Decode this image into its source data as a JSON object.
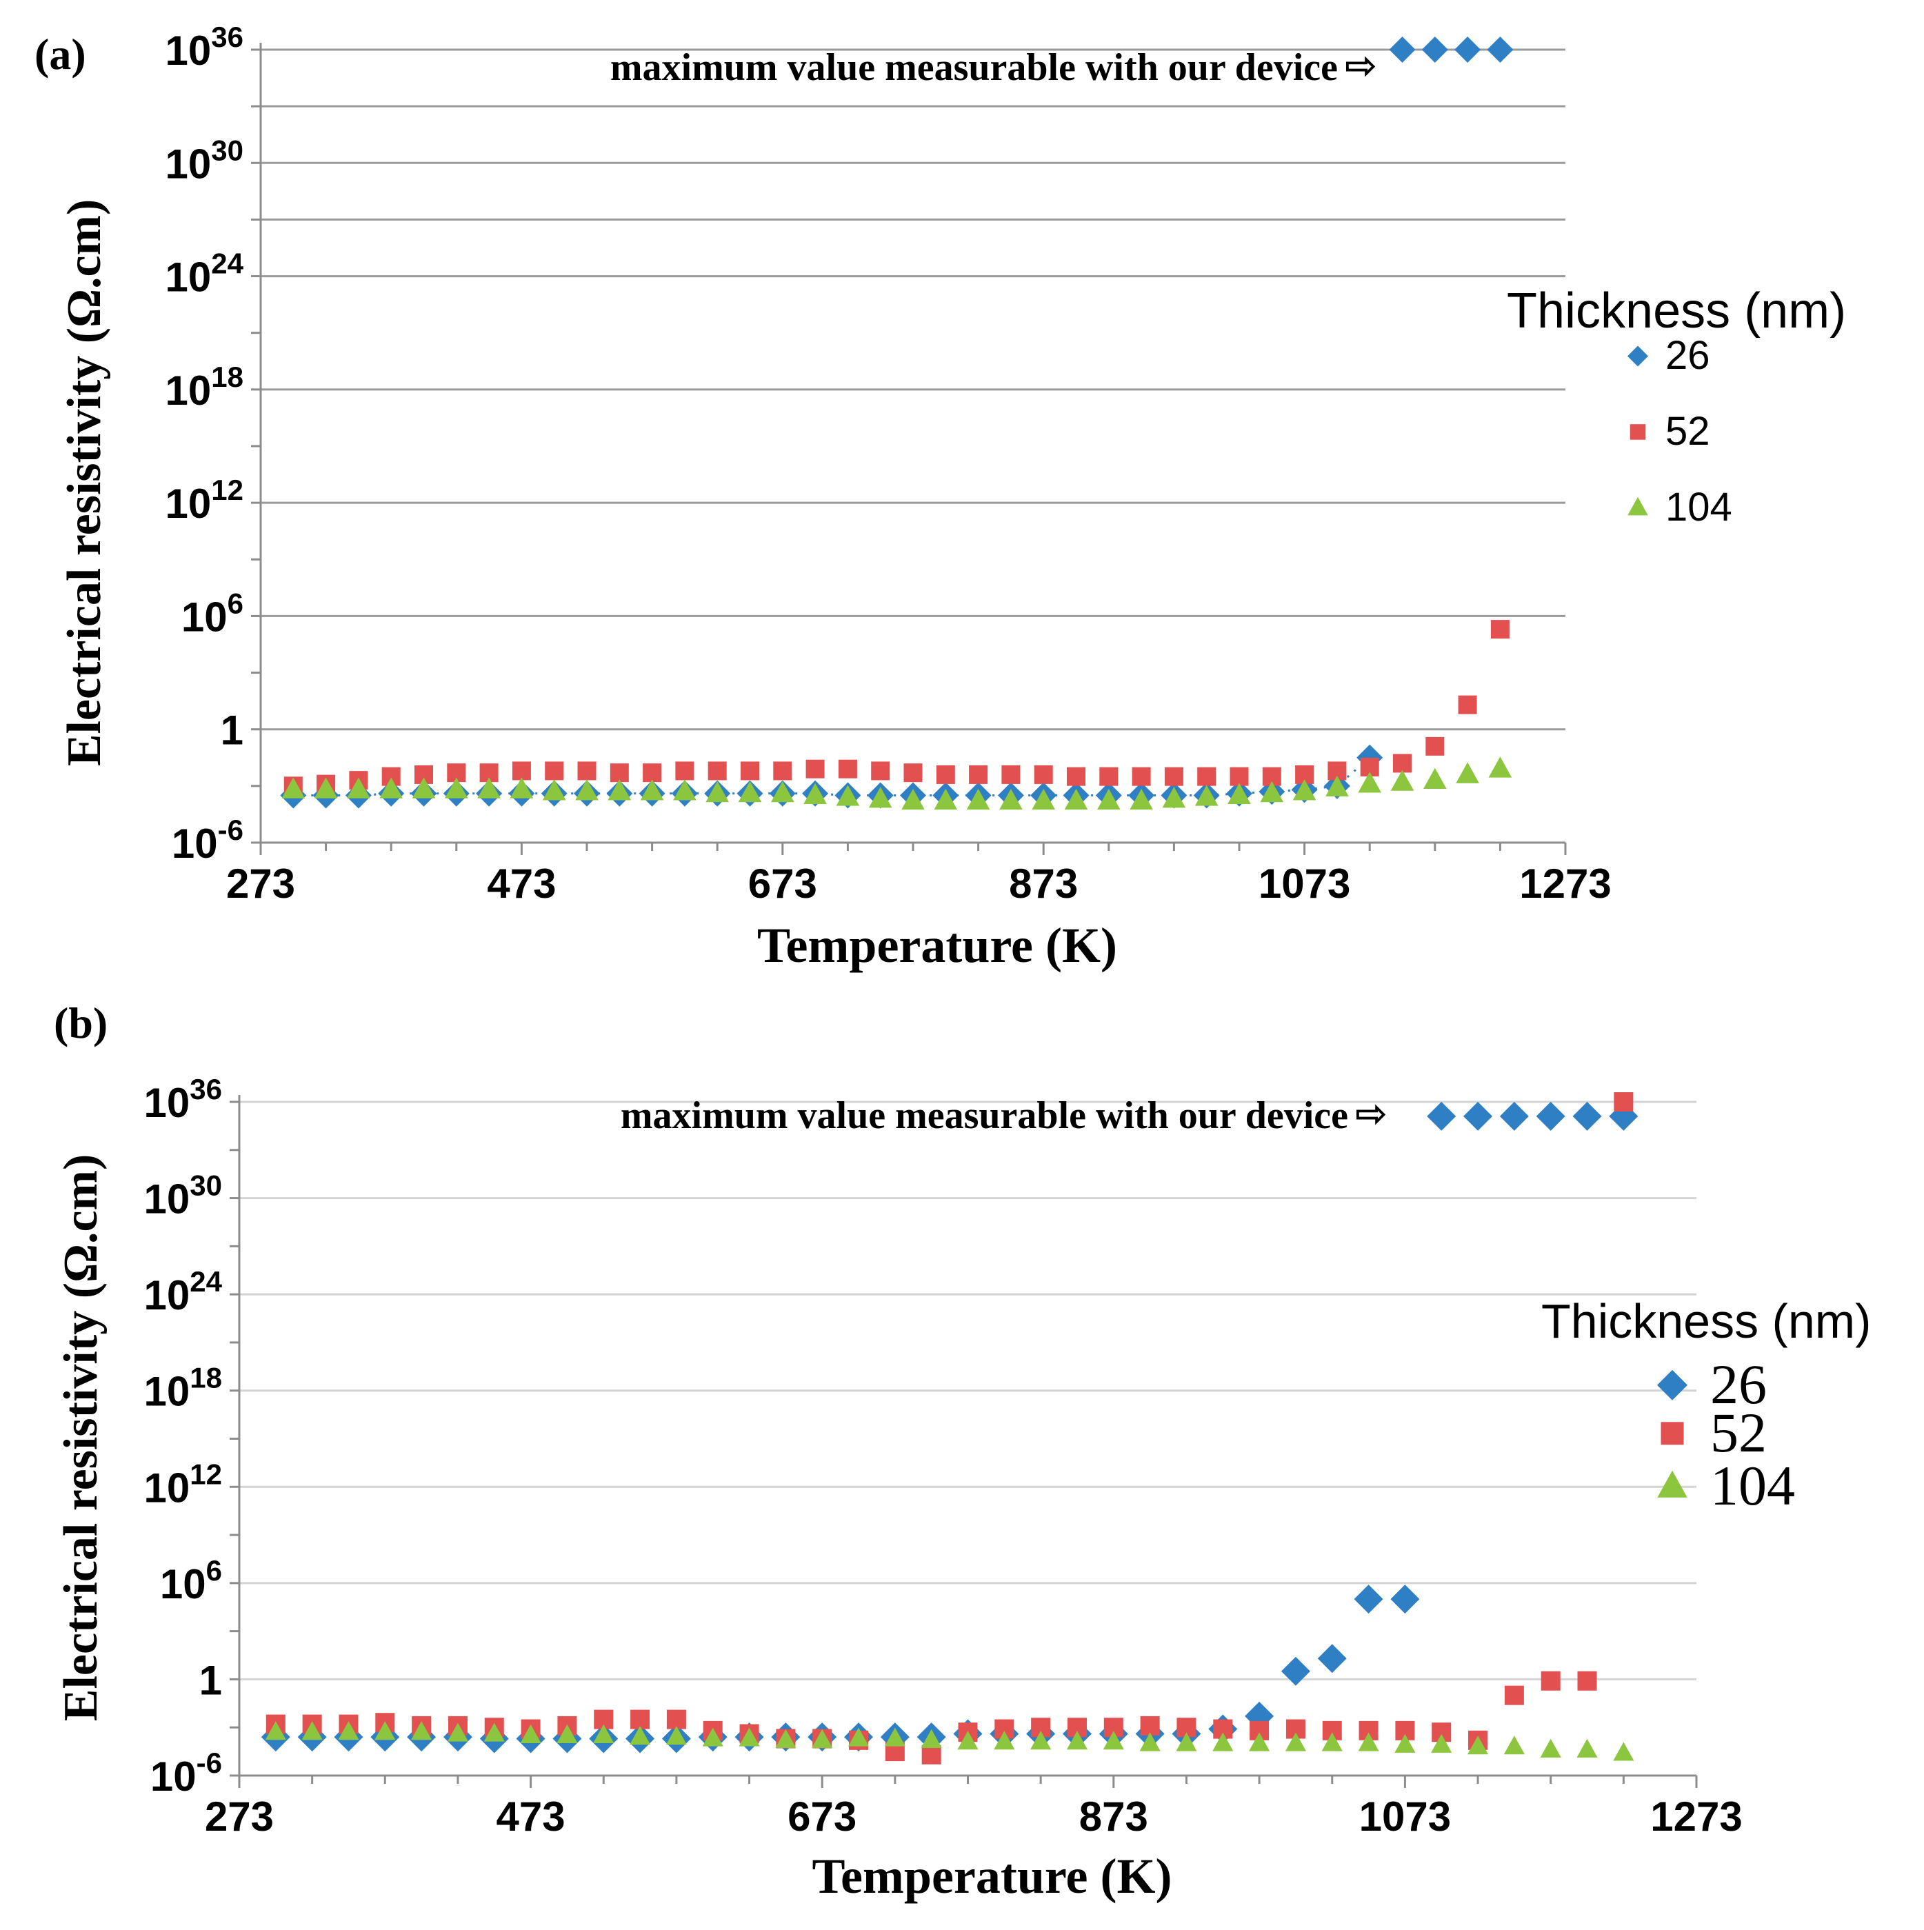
{
  "chart_data": [
    {
      "type": "scatter",
      "panel_label": "(a)",
      "xlabel": "Temperature (K)",
      "ylabel": "Electrical resistivity  (Ω.cm)",
      "xlim": [
        273,
        1273
      ],
      "x_ticks": [
        "273",
        "473",
        "673",
        "873",
        "1073",
        "1273"
      ],
      "y_log_range": [
        -6,
        36
      ],
      "y_ticks": [
        {
          "base": "10",
          "exp": "-6"
        },
        {
          "base": "1",
          "exp": ""
        },
        {
          "base": "10",
          "exp": "6"
        },
        {
          "base": "10",
          "exp": "12"
        },
        {
          "base": "10",
          "exp": "18"
        },
        {
          "base": "10",
          "exp": "24"
        },
        {
          "base": "10",
          "exp": "30"
        },
        {
          "base": "10",
          "exp": "36"
        }
      ],
      "annotation": "maximum  value measurable  with our device",
      "annotation_arrow": "⇨",
      "legend_title": "Thickness (nm)",
      "series": [
        {
          "name": "26",
          "marker": "diamond",
          "color": "#2e7fc4",
          "x": [
            298,
            323,
            348,
            373,
            398,
            423,
            448,
            473,
            498,
            523,
            548,
            573,
            598,
            623,
            648,
            673,
            698,
            723,
            748,
            773,
            798,
            823,
            848,
            873,
            898,
            923,
            948,
            973,
            998,
            1023,
            1048,
            1073,
            1098,
            1123,
            1148,
            1173,
            1198,
            1223
          ],
          "logy": [
            -3.5,
            -3.5,
            -3.5,
            -3.4,
            -3.4,
            -3.4,
            -3.4,
            -3.4,
            -3.4,
            -3.4,
            -3.4,
            -3.4,
            -3.4,
            -3.4,
            -3.4,
            -3.4,
            -3.4,
            -3.5,
            -3.5,
            -3.5,
            -3.5,
            -3.5,
            -3.5,
            -3.5,
            -3.5,
            -3.5,
            -3.5,
            -3.5,
            -3.5,
            -3.4,
            -3.3,
            -3.2,
            -3.0,
            -1.5,
            36,
            36,
            36,
            36
          ]
        },
        {
          "name": "52",
          "marker": "square",
          "color": "#e25050",
          "x": [
            298,
            323,
            348,
            373,
            398,
            423,
            448,
            473,
            498,
            523,
            548,
            573,
            598,
            623,
            648,
            673,
            698,
            723,
            748,
            773,
            798,
            823,
            848,
            873,
            898,
            923,
            948,
            973,
            998,
            1023,
            1048,
            1073,
            1098,
            1123,
            1148,
            1173,
            1198,
            1223
          ],
          "logy": [
            -3.0,
            -2.9,
            -2.7,
            -2.5,
            -2.4,
            -2.3,
            -2.3,
            -2.2,
            -2.2,
            -2.2,
            -2.3,
            -2.3,
            -2.2,
            -2.2,
            -2.2,
            -2.2,
            -2.1,
            -2.1,
            -2.2,
            -2.3,
            -2.4,
            -2.4,
            -2.4,
            -2.4,
            -2.5,
            -2.5,
            -2.5,
            -2.5,
            -2.5,
            -2.5,
            -2.5,
            -2.4,
            -2.2,
            -2.0,
            -1.8,
            -0.9,
            1.3,
            5.3
          ]
        },
        {
          "name": "104",
          "marker": "triangle",
          "color": "#8cc63e",
          "x": [
            298,
            323,
            348,
            373,
            398,
            423,
            448,
            473,
            498,
            523,
            548,
            573,
            598,
            623,
            648,
            673,
            698,
            723,
            748,
            773,
            798,
            823,
            848,
            873,
            898,
            923,
            948,
            973,
            998,
            1023,
            1048,
            1073,
            1098,
            1123,
            1148,
            1173,
            1198,
            1223
          ],
          "logy": [
            -3.2,
            -3.2,
            -3.2,
            -3.2,
            -3.2,
            -3.2,
            -3.2,
            -3.2,
            -3.3,
            -3.3,
            -3.3,
            -3.3,
            -3.3,
            -3.4,
            -3.4,
            -3.4,
            -3.5,
            -3.6,
            -3.7,
            -3.8,
            -3.8,
            -3.8,
            -3.8,
            -3.8,
            -3.8,
            -3.8,
            -3.8,
            -3.7,
            -3.6,
            -3.5,
            -3.4,
            -3.3,
            -3.1,
            -2.9,
            -2.8,
            -2.7,
            -2.4,
            -2.1
          ]
        }
      ]
    },
    {
      "type": "scatter",
      "panel_label": "(b)",
      "xlabel": "Temperature (K)",
      "ylabel": "Electrical resistivity  (Ω.cm)",
      "xlim": [
        273,
        1273
      ],
      "x_ticks": [
        "273",
        "473",
        "673",
        "873",
        "1073",
        "1273"
      ],
      "y_log_range": [
        -6,
        36
      ],
      "y_ticks": [
        {
          "base": "10",
          "exp": "-6"
        },
        {
          "base": "1",
          "exp": ""
        },
        {
          "base": "10",
          "exp": "6"
        },
        {
          "base": "10",
          "exp": "12"
        },
        {
          "base": "10",
          "exp": "18"
        },
        {
          "base": "10",
          "exp": "24"
        },
        {
          "base": "10",
          "exp": "30"
        },
        {
          "base": "10",
          "exp": "36"
        }
      ],
      "annotation": "maximum  value measurable  with our device",
      "annotation_arrow": "⇨",
      "legend_title": "Thickness (nm)",
      "series": [
        {
          "name": "26",
          "marker": "diamond",
          "color": "#2e7fc4",
          "x": [
            298,
            323,
            348,
            373,
            398,
            423,
            448,
            473,
            498,
            523,
            548,
            573,
            598,
            623,
            648,
            673,
            698,
            723,
            748,
            773,
            798,
            823,
            848,
            873,
            898,
            923,
            948,
            973,
            998,
            1023,
            1048,
            1073,
            1098,
            1123,
            1148,
            1173,
            1198,
            1223
          ],
          "logy": [
            -3.6,
            -3.6,
            -3.6,
            -3.6,
            -3.6,
            -3.6,
            -3.7,
            -3.7,
            -3.7,
            -3.7,
            -3.7,
            -3.7,
            -3.6,
            -3.6,
            -3.6,
            -3.6,
            -3.6,
            -3.6,
            -3.6,
            -3.4,
            -3.4,
            -3.4,
            -3.4,
            -3.4,
            -3.4,
            -3.4,
            -3.1,
            -2.3,
            0.5,
            1.3,
            5.0,
            5.0,
            35.1,
            35.1,
            35.1,
            35.1,
            35.1,
            35.1
          ]
        },
        {
          "name": "52",
          "marker": "square",
          "color": "#e25050",
          "x": [
            298,
            323,
            348,
            373,
            398,
            423,
            448,
            473,
            498,
            523,
            548,
            573,
            598,
            623,
            648,
            673,
            698,
            723,
            748,
            773,
            798,
            823,
            848,
            873,
            898,
            923,
            948,
            973,
            998,
            1023,
            1048,
            1073,
            1098,
            1123,
            1148,
            1173,
            1198,
            1223
          ],
          "logy": [
            -2.8,
            -2.8,
            -2.8,
            -2.7,
            -2.9,
            -2.9,
            -3.0,
            -3.1,
            -2.9,
            -2.5,
            -2.5,
            -2.5,
            -3.2,
            -3.4,
            -3.7,
            -3.7,
            -3.8,
            -4.5,
            -4.7,
            -3.3,
            -3.1,
            -3.0,
            -3.0,
            -3.0,
            -2.9,
            -3.0,
            -3.1,
            -3.2,
            -3.1,
            -3.2,
            -3.2,
            -3.2,
            -3.3,
            -3.8,
            -1.0,
            -0.1,
            -0.1,
            36.0
          ]
        },
        {
          "name": "104",
          "marker": "triangle",
          "color": "#8cc63e",
          "x": [
            298,
            323,
            348,
            373,
            398,
            423,
            448,
            473,
            498,
            523,
            548,
            573,
            598,
            623,
            648,
            673,
            698,
            723,
            748,
            773,
            798,
            823,
            848,
            873,
            898,
            923,
            948,
            973,
            998,
            1023,
            1048,
            1073,
            1098,
            1123,
            1148,
            1173,
            1198,
            1223
          ],
          "logy": [
            -3.3,
            -3.3,
            -3.3,
            -3.3,
            -3.3,
            -3.4,
            -3.4,
            -3.5,
            -3.5,
            -3.5,
            -3.6,
            -3.6,
            -3.7,
            -3.7,
            -3.8,
            -3.8,
            -3.7,
            -3.7,
            -3.8,
            -3.9,
            -3.9,
            -3.9,
            -3.9,
            -3.9,
            -4.0,
            -4.0,
            -4.0,
            -4.0,
            -4.0,
            -4.0,
            -4.0,
            -4.1,
            -4.1,
            -4.2,
            -4.2,
            -4.4,
            -4.4,
            -4.6
          ]
        }
      ]
    }
  ]
}
